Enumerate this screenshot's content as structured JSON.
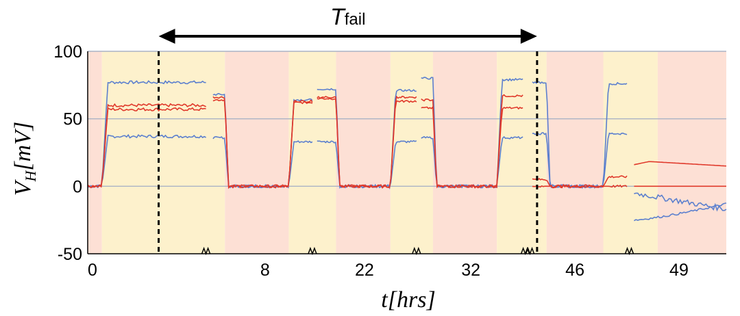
{
  "chart_data": {
    "type": "line",
    "title": "",
    "annotation": {
      "label_main": "T",
      "label_sub": "fail",
      "start_x": 3.0,
      "end_x": 19.0
    },
    "xlabel": {
      "var": "t",
      "unit": "[hrs]"
    },
    "ylabel": {
      "var": "V",
      "sub": "H",
      "unit": "[mV]"
    },
    "xlim": [
      0,
      27
    ],
    "ylim": [
      -50,
      100
    ],
    "yticks": [
      {
        "value": 100,
        "label": "100"
      },
      {
        "value": 50,
        "label": "50"
      },
      {
        "value": 0,
        "label": "0"
      },
      {
        "value": -50,
        "label": "-50"
      }
    ],
    "xticks": [
      {
        "value": 0.2,
        "label": "0"
      },
      {
        "value": 7.5,
        "label": "8"
      },
      {
        "value": 11.7,
        "label": "22"
      },
      {
        "value": 16.2,
        "label": "32"
      },
      {
        "value": 20.6,
        "label": "46"
      },
      {
        "value": 25.0,
        "label": "49"
      }
    ],
    "axis_breaks": [
      5.0,
      9.5,
      13.9,
      18.5,
      18.7,
      22.9
    ],
    "gridlines": [
      100,
      50,
      0
    ],
    "background_regions": [
      {
        "state": "red",
        "from": 0,
        "to": 0.6
      },
      {
        "state": "yellow",
        "from": 0.6,
        "to": 5.8
      },
      {
        "state": "red",
        "from": 5.8,
        "to": 8.5
      },
      {
        "state": "yellow",
        "from": 8.5,
        "to": 10.5
      },
      {
        "state": "red",
        "from": 10.5,
        "to": 12.8
      },
      {
        "state": "yellow",
        "from": 12.8,
        "to": 14.6
      },
      {
        "state": "red",
        "from": 14.6,
        "to": 17.3
      },
      {
        "state": "yellow",
        "from": 17.3,
        "to": 19.4
      },
      {
        "state": "red",
        "from": 19.4,
        "to": 21.8
      },
      {
        "state": "yellow",
        "from": 21.8,
        "to": 24.1
      },
      {
        "state": "red",
        "from": 24.1,
        "to": 27
      }
    ],
    "fail_markers": [
      3.0,
      19.0
    ],
    "series_colors": {
      "blue": "#5b7fce",
      "red": "#e0392b"
    },
    "segments": [
      {
        "start": 0,
        "end": 5.0,
        "start_level": 0,
        "rise_at": 0.6,
        "fall_at": null,
        "levels": {
          "blue_top": 77,
          "red_1": 60,
          "red_2": 57,
          "blue_bottom": 37
        }
      },
      {
        "start": 5.3,
        "end": 9.5,
        "start_level": "high",
        "rise_at": 8.5,
        "fall_at": 5.8,
        "levels_start": {
          "blue_top": 68,
          "red_1": 66,
          "red_2": 64,
          "blue_bottom": 36
        },
        "levels_end": {
          "blue_top": 64,
          "red_1": 63,
          "red_2": 62,
          "blue_bottom": 33
        }
      },
      {
        "start": 9.7,
        "end": 13.9,
        "start_level": "high",
        "rise_at": 12.8,
        "fall_at": 10.5,
        "levels_start": {
          "blue_top": 72,
          "red_1": 66,
          "red_2": 65,
          "blue_bottom": 33
        },
        "levels_end": {
          "blue_top": 71,
          "red_1": 66,
          "red_2": 63,
          "blue_bottom": 33
        }
      },
      {
        "start": 14.1,
        "end": 18.4,
        "start_level": "high",
        "rise_at": 17.3,
        "fall_at": 14.6,
        "levels_start": {
          "blue_top": 80,
          "red_1": 64,
          "red_2": 58,
          "blue_bottom": 36
        },
        "levels_end": {
          "blue_top": 79,
          "red_1": 67,
          "red_2": 58,
          "blue_bottom": 36
        }
      },
      {
        "start": 18.8,
        "end": 22.8,
        "start_level": "high",
        "rise_at": 21.8,
        "fall_at": 19.4,
        "levels_start": {
          "blue_top": 77,
          "red_1": 5,
          "red_2": 0,
          "blue_bottom": 39
        },
        "levels_end": {
          "blue_top": 76,
          "red_1": 7,
          "red_2": 0,
          "blue_bottom": 39
        }
      },
      {
        "start": 23.1,
        "end": 27,
        "start_level": "fail",
        "levels": {
          "red_1_from": 16,
          "red_1_peak": 19,
          "red_1_to": 15,
          "red_2": 0,
          "blue_1_from": -5,
          "blue_1_to": -17,
          "blue_2_from": -25,
          "blue_2_to": -13
        }
      }
    ]
  }
}
